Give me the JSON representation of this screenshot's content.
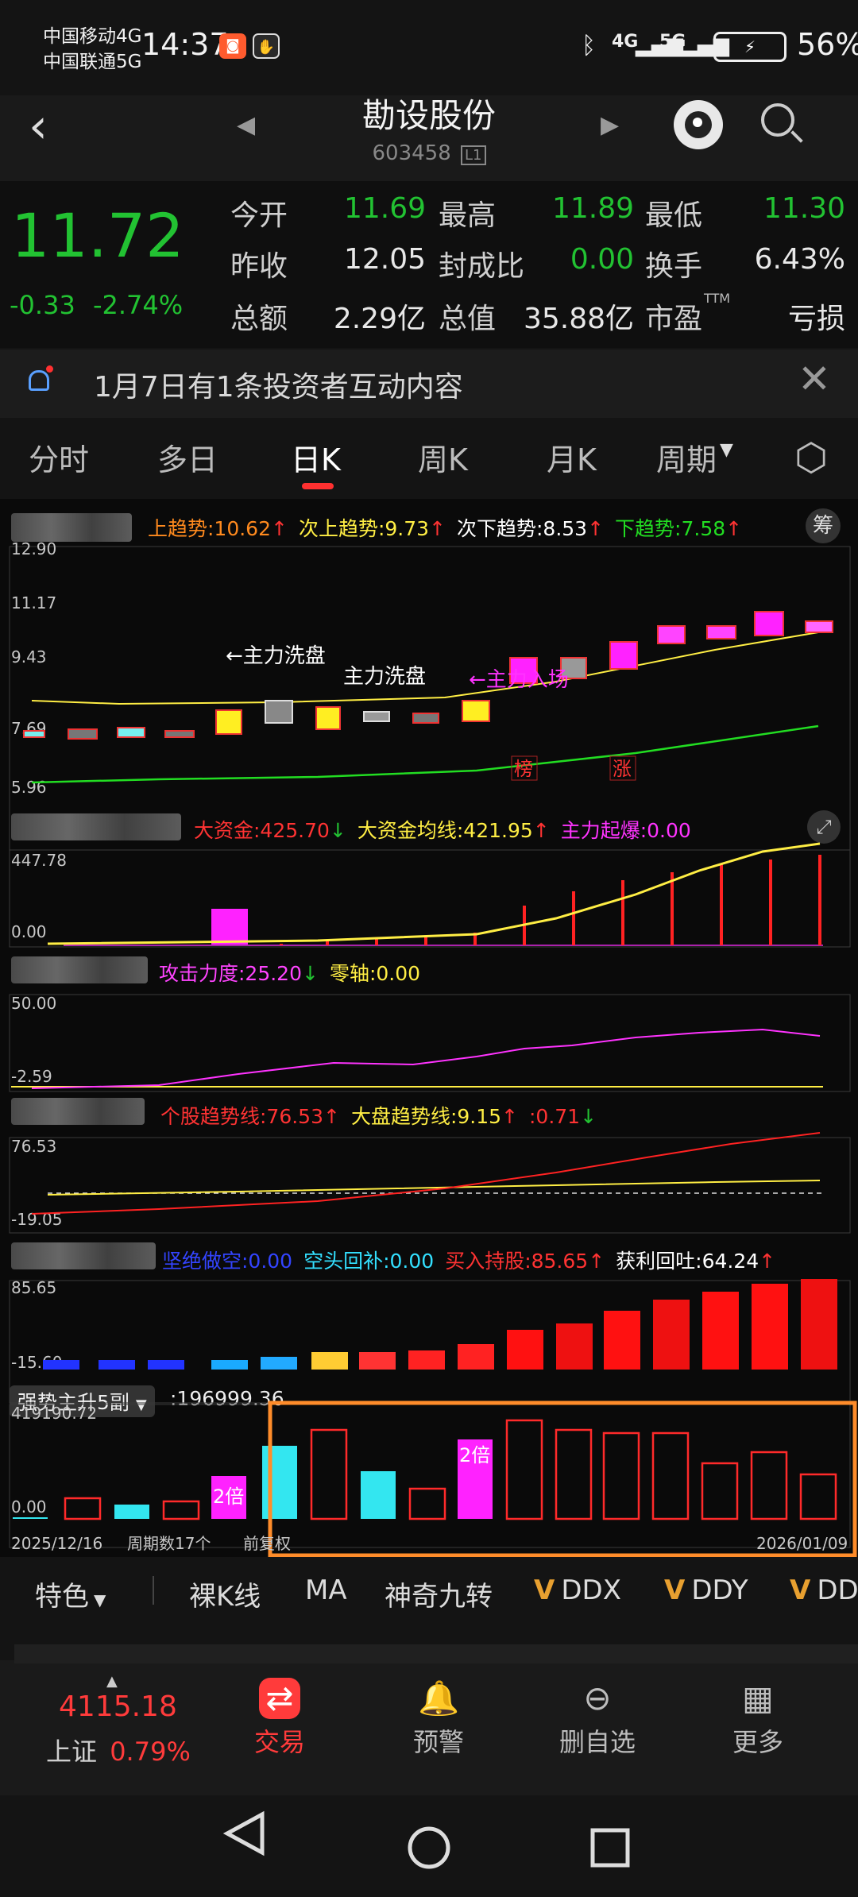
{
  "status_bar": {
    "carrier1": "中国移动4G",
    "carrier2": "中国联通5G",
    "time": "14:37",
    "net1": "4G",
    "net2": "5G",
    "battery_percent": "56%"
  },
  "nav": {
    "title": "勘设股份",
    "code": "603458",
    "level_badge": "L1"
  },
  "quote": {
    "price": "11.72",
    "change": "-0.33",
    "change_pct": "-2.74%",
    "items": [
      {
        "label": "今开",
        "value": "11.69",
        "color": "#22c232"
      },
      {
        "label": "最高",
        "value": "11.89",
        "color": "#22c232"
      },
      {
        "label": "最低",
        "value": "11.30",
        "color": "#22c232"
      },
      {
        "label": "昨收",
        "value": "12.05",
        "color": "#e8e8e8"
      },
      {
        "label": "封成比",
        "value": "0.00",
        "color": "#22c232"
      },
      {
        "label": "换手",
        "value": "6.43%",
        "color": "#e8e8e8"
      },
      {
        "label": "总额",
        "value": "2.29亿",
        "color": "#e8e8e8"
      },
      {
        "label": "总值",
        "value": "35.88亿",
        "color": "#e8e8e8"
      },
      {
        "label": "市盈",
        "value": "亏损",
        "color": "#e8e8e8"
      }
    ],
    "pe_suffix": "TTM"
  },
  "notice": {
    "text": "1月7日有1条投资者互动内容"
  },
  "tabs": [
    "分时",
    "多日",
    "日K",
    "周K",
    "月K",
    "周期"
  ],
  "active_tab": "日K",
  "main_chart": {
    "legend": [
      {
        "text": "上趋势:10.62",
        "color": "#ff8a1e",
        "arrow": "↑"
      },
      {
        "text": "次上趋势:9.73",
        "color": "#ffee44",
        "arrow": "↑"
      },
      {
        "text": "次下趋势:8.53",
        "color": "#ffffff",
        "arrow": "↑"
      },
      {
        "text": "下趋势:7.58",
        "color": "#22dd22",
        "arrow": "↑"
      }
    ],
    "chip_button": "筹",
    "y_labels": [
      "12.90",
      "11.17",
      "9.43",
      "7.69",
      "5.96"
    ],
    "annotations": [
      "←主力洗盘",
      "主力洗盘",
      "←主力入场"
    ],
    "tags": [
      "榜",
      "涨"
    ]
  },
  "sub1": {
    "legend": [
      {
        "text": "大资金:425.70",
        "color": "#ff3333",
        "arrow": "↓"
      },
      {
        "text": "大资金均线:421.95",
        "color": "#ffee44",
        "arrow": "↑"
      },
      {
        "text": "主力起爆:0.00",
        "color": "#ff33ff",
        "arrow": ""
      }
    ],
    "y_labels": [
      "447.78",
      "0.00"
    ]
  },
  "sub2": {
    "legend": [
      {
        "text": "攻击力度:25.20",
        "color": "#ff44ff",
        "arrow": "↓"
      },
      {
        "text": "零轴:0.00",
        "color": "#ffee44",
        "arrow": ""
      }
    ],
    "y_labels": [
      "50.00",
      "-2.59"
    ]
  },
  "sub3": {
    "legend": [
      {
        "text": "个股趋势线:76.53",
        "color": "#ff3333",
        "arrow": "↑"
      },
      {
        "text": "大盘趋势线:9.15",
        "color": "#ffee44",
        "arrow": "↑"
      },
      {
        "text": ":0.71",
        "color": "#ff3333",
        "arrow": "↓"
      }
    ],
    "y_labels": [
      "76.53",
      "-19.05"
    ]
  },
  "sub4": {
    "legend": [
      {
        "text": "坚绝做空:0.00",
        "color": "#3344ff",
        "arrow": ""
      },
      {
        "text": "空头回补:0.00",
        "color": "#33e0ff",
        "arrow": ""
      },
      {
        "text": "买入持股:85.65",
        "color": "#ff3333",
        "arrow": "↑"
      },
      {
        "text": "获利回吐:64.24",
        "color": "#ffffff",
        "arrow": "↑"
      }
    ],
    "y_labels": [
      "85.65",
      "-15.60"
    ]
  },
  "sub5": {
    "indicator_name": "强势主升5副",
    "value_text": ":196999.36",
    "y_labels": [
      "419190.72",
      "0.00"
    ],
    "badges": [
      "2倍",
      "2倍"
    ],
    "footer_left": "2025/12/16",
    "footer_mid1": "周期数17个",
    "footer_mid2": "前复权",
    "footer_right": "2026/01/09"
  },
  "indicator_bar": [
    "特色",
    "裸K线",
    "MA",
    "神奇九转",
    "DDX",
    "DDY",
    "DD"
  ],
  "dock": {
    "index_value": "4115.18",
    "index_name": "上证",
    "index_change": "0.79%",
    "items": [
      "交易",
      "预警",
      "删自选",
      "更多"
    ]
  },
  "colors": {
    "up": "#ff2a2a",
    "down": "#22c232",
    "accent": "#ff8c2a",
    "magenta": "#ff22ff",
    "cyan": "#33e6f0"
  }
}
